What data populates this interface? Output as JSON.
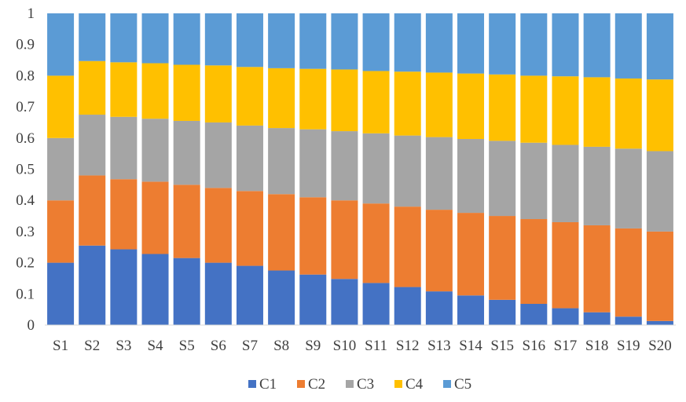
{
  "chart_data": {
    "type": "bar",
    "stacked": true,
    "title": "",
    "xlabel": "",
    "ylabel": "",
    "ylim": [
      0,
      1
    ],
    "yticks": [
      "0",
      "0.1",
      "0.2",
      "0.3",
      "0.4",
      "0.5",
      "0.6",
      "0.7",
      "0.8",
      "0.9",
      "1"
    ],
    "grid": false,
    "legend_position": "bottom",
    "categories": [
      "S1",
      "S2",
      "S3",
      "S4",
      "S5",
      "S6",
      "S7",
      "S8",
      "S9",
      "S10",
      "S11",
      "S12",
      "S13",
      "S14",
      "S15",
      "S16",
      "S17",
      "S18",
      "S19",
      "S20"
    ],
    "series": [
      {
        "name": "C1",
        "color": "#4472c4",
        "values": [
          0.2,
          0.255,
          0.243,
          0.228,
          0.215,
          0.2,
          0.19,
          0.175,
          0.162,
          0.148,
          0.135,
          0.122,
          0.108,
          0.095,
          0.081,
          0.068,
          0.054,
          0.041,
          0.027,
          0.013
        ]
      },
      {
        "name": "C2",
        "color": "#ed7d31",
        "values": [
          0.2,
          0.225,
          0.225,
          0.232,
          0.235,
          0.24,
          0.24,
          0.245,
          0.248,
          0.252,
          0.255,
          0.258,
          0.262,
          0.265,
          0.269,
          0.272,
          0.276,
          0.279,
          0.283,
          0.287
        ]
      },
      {
        "name": "C3",
        "color": "#a5a5a5",
        "values": [
          0.2,
          0.195,
          0.2,
          0.202,
          0.205,
          0.21,
          0.21,
          0.212,
          0.218,
          0.222,
          0.225,
          0.228,
          0.233,
          0.237,
          0.241,
          0.245,
          0.248,
          0.252,
          0.256,
          0.258
        ]
      },
      {
        "name": "C4",
        "color": "#ffc000",
        "values": [
          0.2,
          0.172,
          0.175,
          0.178,
          0.18,
          0.183,
          0.188,
          0.192,
          0.194,
          0.198,
          0.2,
          0.205,
          0.207,
          0.21,
          0.213,
          0.215,
          0.22,
          0.223,
          0.225,
          0.23
        ]
      },
      {
        "name": "C5",
        "color": "#5b9bd5",
        "values": [
          0.2,
          0.153,
          0.157,
          0.16,
          0.165,
          0.167,
          0.172,
          0.176,
          0.178,
          0.18,
          0.185,
          0.187,
          0.19,
          0.193,
          0.196,
          0.2,
          0.202,
          0.205,
          0.209,
          0.212
        ]
      }
    ]
  }
}
